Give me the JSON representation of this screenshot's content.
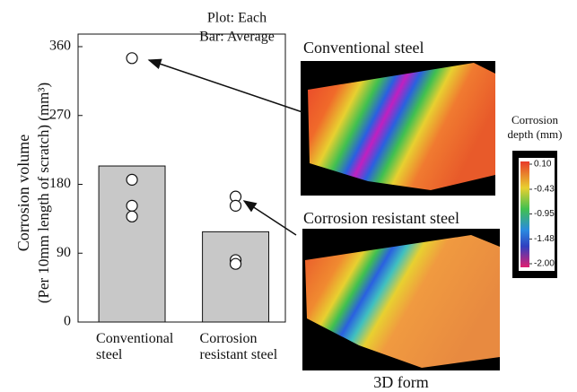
{
  "chart_data": {
    "type": "bar",
    "annotations": [
      "Plot: Each",
      "Bar: Average"
    ],
    "ylabel": [
      "Corrosion volume",
      "(Per 10mm length of scratch) (mm³)"
    ],
    "categories": [
      "Conventional steel",
      "Corrosion resistant steel"
    ],
    "values": [
      204,
      118
    ],
    "color": "#c8c8c8",
    "points": [
      [
        345,
        186,
        152,
        138
      ],
      [
        164,
        152,
        81,
        76
      ]
    ],
    "ylim": [
      0,
      360
    ],
    "yticks": [
      0,
      90,
      180,
      270,
      360
    ],
    "images": [
      {
        "label": "Conventional steel"
      },
      {
        "label": "Corrosion resistant steel"
      }
    ],
    "image_caption": "3D form",
    "colorbar": {
      "title": "Corrosion depth (mm)",
      "lim": [
        -2.0,
        0.1
      ],
      "ticks": [
        {
          "value": 0.1,
          "label": "0.10"
        },
        {
          "value": -0.43,
          "label": "-0.43"
        },
        {
          "value": -0.95,
          "label": "-0.95"
        },
        {
          "value": -1.48,
          "label": "-1.48"
        },
        {
          "value": -2.0,
          "label": "-2.00"
        }
      ]
    }
  }
}
